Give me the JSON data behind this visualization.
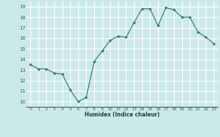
{
  "x": [
    0,
    1,
    2,
    3,
    4,
    5,
    6,
    7,
    8,
    9,
    10,
    11,
    12,
    13,
    14,
    15,
    16,
    17,
    18,
    19,
    20,
    21,
    22,
    23
  ],
  "y": [
    13.5,
    13.1,
    13.1,
    12.7,
    12.6,
    11.1,
    10.0,
    10.4,
    13.8,
    14.8,
    15.8,
    16.2,
    16.1,
    17.5,
    18.8,
    18.8,
    17.2,
    18.9,
    18.7,
    18.0,
    18.0,
    16.6,
    16.1,
    15.5
  ],
  "xlim": [
    -0.5,
    23.5
  ],
  "ylim": [
    9.5,
    19.5
  ],
  "yticks": [
    10,
    11,
    12,
    13,
    14,
    15,
    16,
    17,
    18,
    19
  ],
  "xticks": [
    0,
    1,
    2,
    3,
    4,
    5,
    6,
    7,
    8,
    9,
    10,
    11,
    12,
    13,
    14,
    15,
    16,
    17,
    18,
    19,
    20,
    21,
    22,
    23
  ],
  "xlabel": "Humidex (Indice chaleur)",
  "line_color": "#2e7d6e",
  "marker": "D",
  "marker_size": 1.8,
  "bg_color": "#cce9e9",
  "grid_color": "#ffffff",
  "grid_minor_color": "#e8d8d8"
}
